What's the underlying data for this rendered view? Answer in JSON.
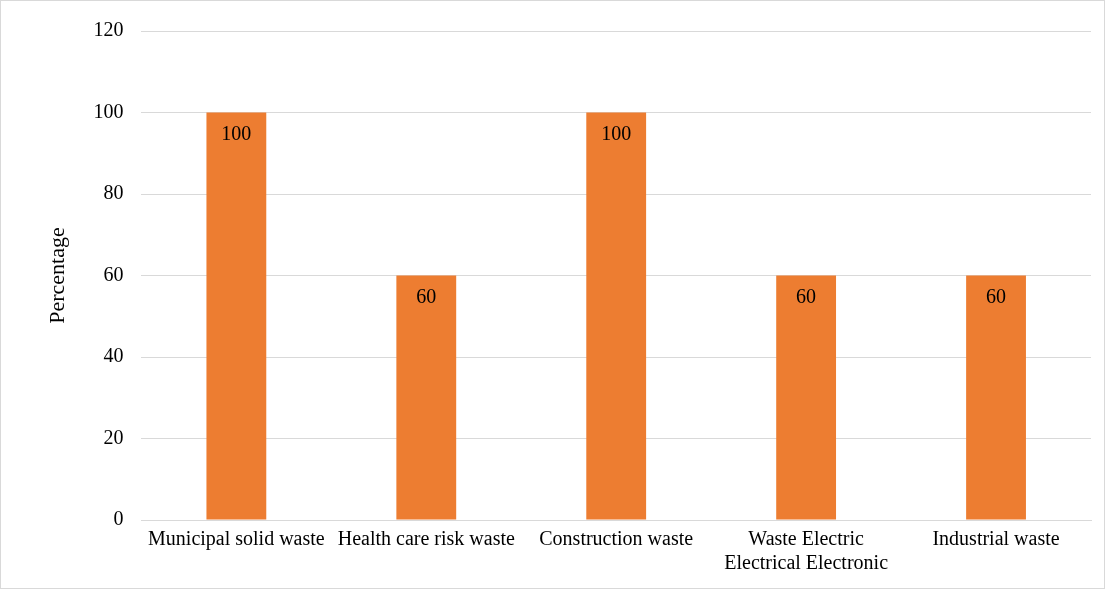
{
  "chart_data": {
    "type": "bar",
    "ylabel": "Percentage",
    "categories": [
      "Municipal solid waste",
      "Health care risk waste",
      "Construction waste",
      "Waste Electric Electrical Electronic",
      "Industrial waste"
    ],
    "values": [
      100,
      60,
      100,
      60,
      60
    ],
    "color": "#ed7d31",
    "ylim": [
      0,
      120
    ],
    "yticks": [
      0,
      20,
      40,
      60,
      80,
      100,
      120
    ],
    "grid": "y",
    "data_labels": true,
    "legend": false
  }
}
